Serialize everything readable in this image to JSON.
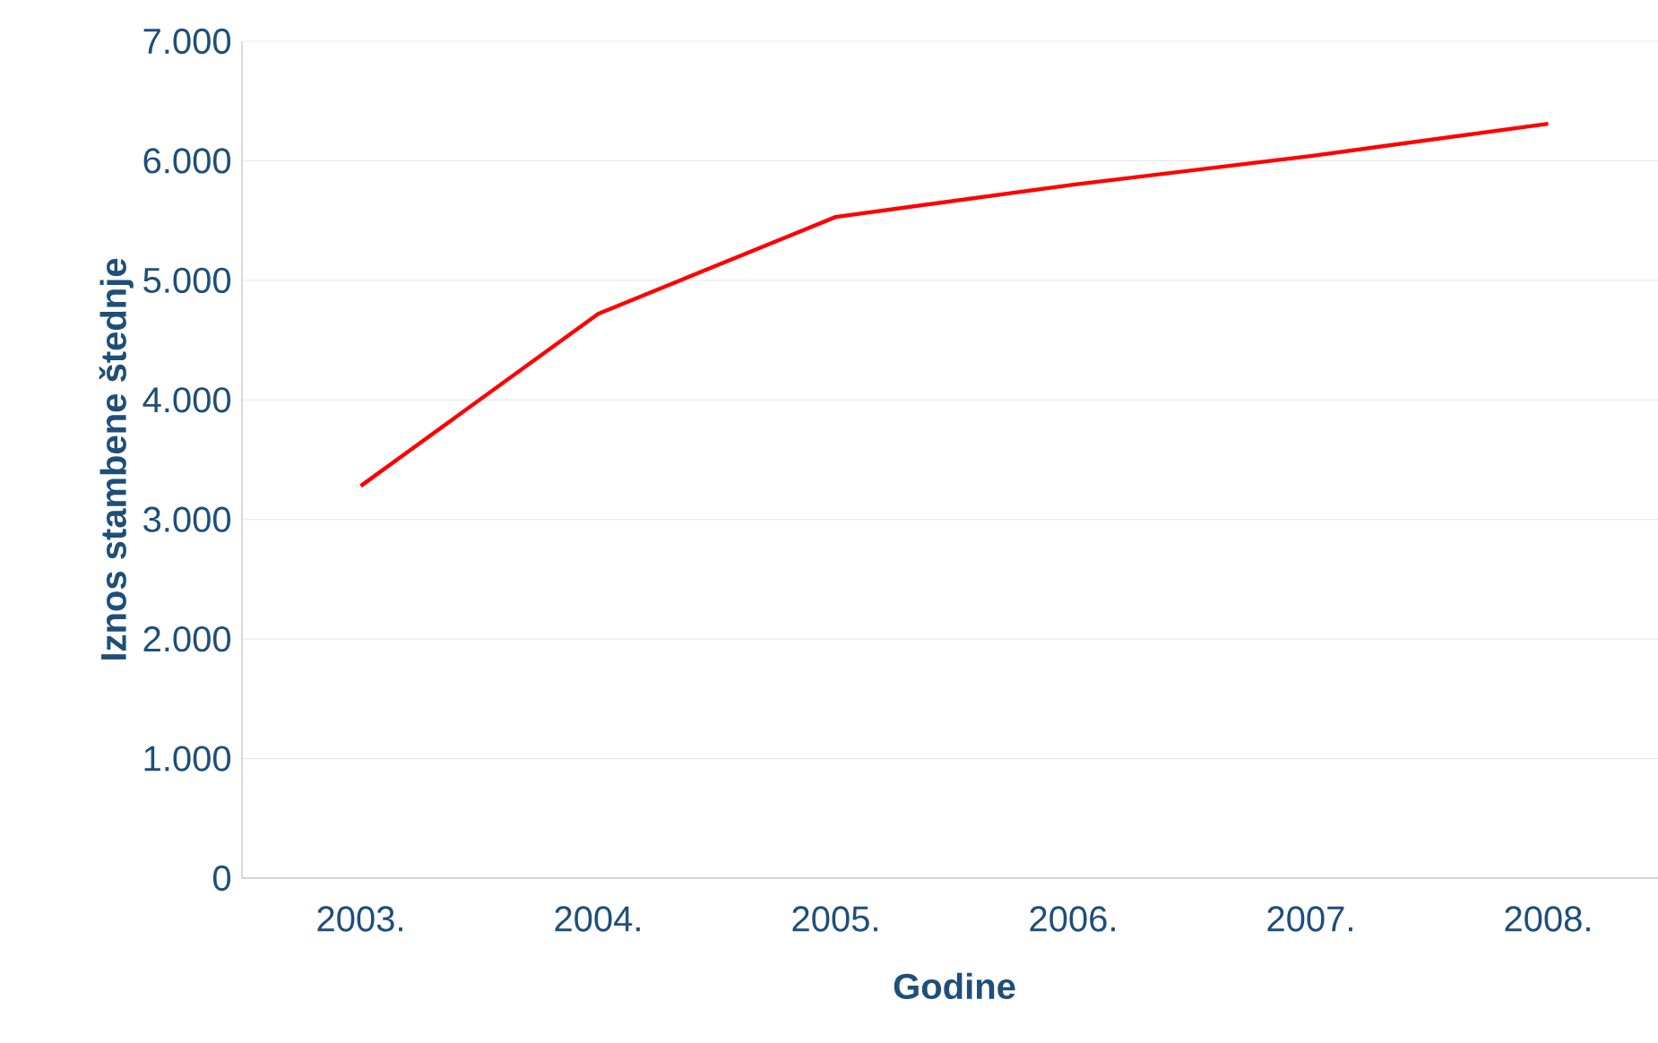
{
  "chart_data": {
    "type": "line",
    "xlabel": "Godine",
    "ylabel": "Iznos stambene štednje",
    "categories": [
      "2003.",
      "2004.",
      "2005.",
      "2006.",
      "2007.",
      "2008."
    ],
    "series": [
      {
        "color": "#ff0000",
        "values": [
          3280,
          4720,
          5530,
          5800,
          6040,
          6310
        ]
      }
    ],
    "ylim": [
      0,
      7000
    ],
    "yticks": [
      0,
      {
        "value": 1000,
        "label": "1.000"
      },
      {
        "value": 2000,
        "label": "2.000"
      },
      {
        "value": 3000,
        "label": "3.000"
      },
      {
        "value": 4000,
        "label": "4.000"
      },
      {
        "value": 5000,
        "label": "5.000"
      },
      {
        "value": 6000,
        "label": "6.000"
      },
      {
        "value": 7000,
        "label": "7.000"
      }
    ],
    "grid": "y"
  }
}
